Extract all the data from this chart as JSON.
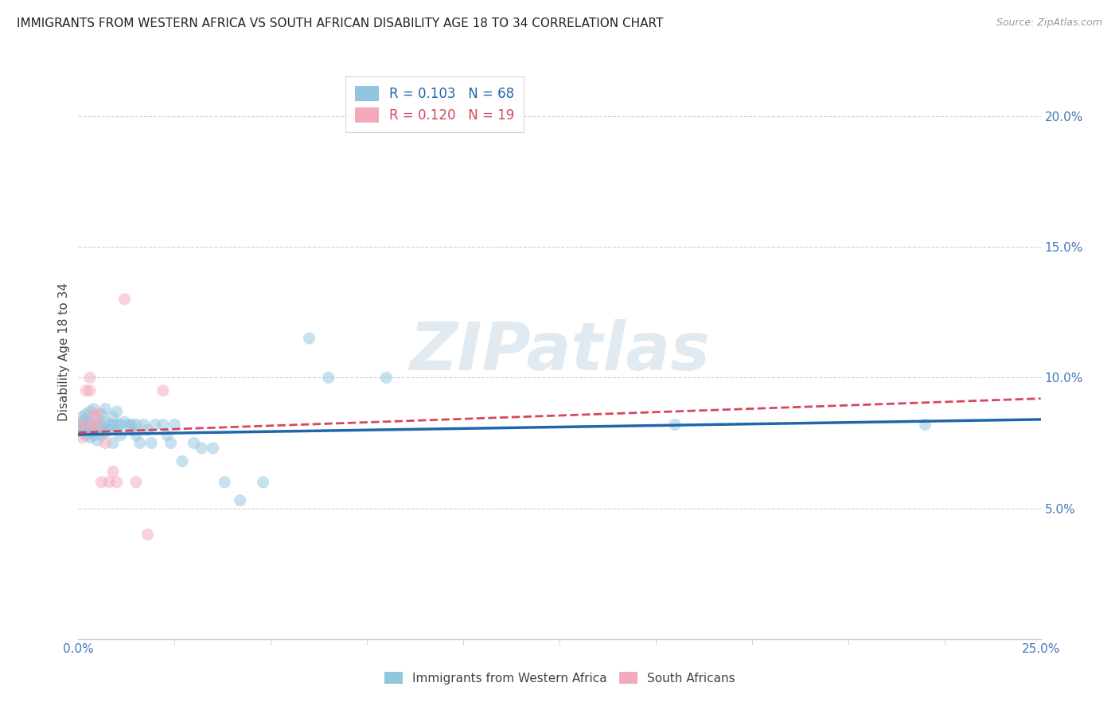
{
  "title": "IMMIGRANTS FROM WESTERN AFRICA VS SOUTH AFRICAN DISABILITY AGE 18 TO 34 CORRELATION CHART",
  "source": "Source: ZipAtlas.com",
  "ylabel": "Disability Age 18 to 34",
  "xlim": [
    0.0,
    0.25
  ],
  "ylim": [
    0.0,
    0.22
  ],
  "yticks": [
    0.05,
    0.1,
    0.15,
    0.2
  ],
  "yticklabels": [
    "5.0%",
    "10.0%",
    "15.0%",
    "20.0%"
  ],
  "xtick_minor_positions": [
    0.025,
    0.05,
    0.075,
    0.1,
    0.125,
    0.15,
    0.175,
    0.2,
    0.225
  ],
  "watermark_text": "ZIPatlas",
  "blue_R": 0.103,
  "blue_N": 68,
  "pink_R": 0.12,
  "pink_N": 19,
  "blue_scatter_x": [
    0.0,
    0.0,
    0.001,
    0.001,
    0.001,
    0.001,
    0.002,
    0.002,
    0.002,
    0.002,
    0.002,
    0.003,
    0.003,
    0.003,
    0.003,
    0.003,
    0.004,
    0.004,
    0.004,
    0.004,
    0.005,
    0.005,
    0.005,
    0.005,
    0.006,
    0.006,
    0.006,
    0.006,
    0.007,
    0.007,
    0.007,
    0.008,
    0.008,
    0.009,
    0.009,
    0.009,
    0.01,
    0.01,
    0.01,
    0.011,
    0.011,
    0.012,
    0.013,
    0.014,
    0.014,
    0.015,
    0.015,
    0.016,
    0.017,
    0.018,
    0.019,
    0.02,
    0.022,
    0.023,
    0.024,
    0.025,
    0.027,
    0.03,
    0.032,
    0.035,
    0.038,
    0.042,
    0.048,
    0.06,
    0.065,
    0.08,
    0.155,
    0.22
  ],
  "blue_scatter_y": [
    0.082,
    0.08,
    0.081,
    0.079,
    0.083,
    0.085,
    0.08,
    0.078,
    0.082,
    0.084,
    0.086,
    0.079,
    0.077,
    0.081,
    0.083,
    0.087,
    0.082,
    0.08,
    0.078,
    0.088,
    0.076,
    0.08,
    0.082,
    0.084,
    0.078,
    0.082,
    0.08,
    0.086,
    0.079,
    0.083,
    0.088,
    0.082,
    0.08,
    0.085,
    0.082,
    0.075,
    0.08,
    0.082,
    0.087,
    0.078,
    0.082,
    0.083,
    0.082,
    0.08,
    0.082,
    0.082,
    0.078,
    0.075,
    0.082,
    0.08,
    0.075,
    0.082,
    0.082,
    0.078,
    0.075,
    0.082,
    0.068,
    0.075,
    0.073,
    0.073,
    0.06,
    0.053,
    0.06,
    0.115,
    0.1,
    0.1,
    0.082,
    0.082
  ],
  "pink_scatter_x": [
    0.0,
    0.001,
    0.002,
    0.002,
    0.003,
    0.003,
    0.004,
    0.004,
    0.005,
    0.005,
    0.006,
    0.007,
    0.008,
    0.009,
    0.01,
    0.012,
    0.015,
    0.018,
    0.022
  ],
  "pink_scatter_y": [
    0.082,
    0.077,
    0.095,
    0.082,
    0.095,
    0.1,
    0.086,
    0.082,
    0.086,
    0.082,
    0.06,
    0.075,
    0.06,
    0.064,
    0.06,
    0.13,
    0.06,
    0.04,
    0.095
  ],
  "blue_line_x": [
    0.0,
    0.25
  ],
  "blue_line_y": [
    0.0782,
    0.084
  ],
  "pink_line_x": [
    0.0,
    0.25
  ],
  "pink_line_y": [
    0.079,
    0.092
  ],
  "scatter_size": 120,
  "scatter_alpha": 0.5,
  "blue_color": "#92c5de",
  "pink_color": "#f4a9bb",
  "blue_line_color": "#2166ac",
  "pink_line_color": "#d6475e",
  "grid_color": "#d0d0d0",
  "bg_color": "#ffffff",
  "title_fontsize": 11,
  "axis_label_fontsize": 11,
  "tick_color": "#4477bb",
  "tick_fontsize": 11
}
